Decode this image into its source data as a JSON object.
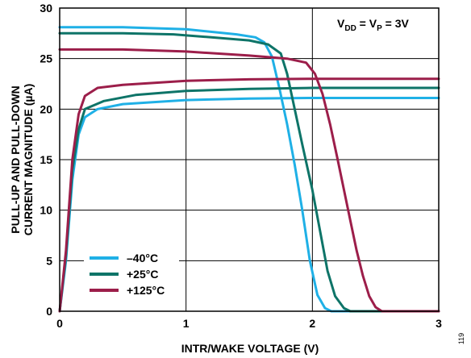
{
  "chart_data": {
    "type": "line",
    "title": "",
    "xlabel": "INTR/WAKE VOLTAGE (V)",
    "ylabel_lines": [
      "PULL-UP AND PULL-DOWN",
      "CURRENT MAGNITUDE (µA)"
    ],
    "xlim": [
      0,
      3
    ],
    "ylim": [
      0,
      30
    ],
    "xticks": [
      "0",
      "1",
      "2",
      "3"
    ],
    "yticks": [
      "0",
      "5",
      "10",
      "15",
      "20",
      "25",
      "30"
    ],
    "grid": true,
    "legend_position": "bottom-left",
    "annotation": {
      "v": "V",
      "dd": "DD",
      "eq1": " = V",
      "p": "P",
      "eq2": " = 3V"
    },
    "figure_id": "119",
    "series": [
      {
        "name": "–40°C",
        "color": "#1fb0e6",
        "pullup": [
          [
            0,
            28.1
          ],
          [
            0.5,
            28.1
          ],
          [
            1.0,
            27.9
          ],
          [
            1.4,
            27.4
          ],
          [
            1.55,
            27.1
          ],
          [
            1.62,
            26.6
          ],
          [
            1.68,
            25.2
          ],
          [
            1.74,
            22
          ],
          [
            1.8,
            18.5
          ],
          [
            1.86,
            14.5
          ],
          [
            1.92,
            10
          ],
          [
            1.98,
            5
          ],
          [
            2.04,
            1.6
          ],
          [
            2.1,
            0.3
          ],
          [
            2.15,
            0
          ],
          [
            3.0,
            0
          ]
        ],
        "pulldown": [
          [
            0,
            0
          ],
          [
            0.05,
            5
          ],
          [
            0.1,
            13
          ],
          [
            0.15,
            17.5
          ],
          [
            0.2,
            19.2
          ],
          [
            0.3,
            20
          ],
          [
            0.5,
            20.5
          ],
          [
            1.0,
            20.9
          ],
          [
            1.5,
            21.05
          ],
          [
            2.0,
            21.1
          ],
          [
            3.0,
            21.1
          ]
        ]
      },
      {
        "name": "+25°C",
        "color": "#0e7468",
        "pullup": [
          [
            0,
            27.5
          ],
          [
            0.5,
            27.5
          ],
          [
            0.9,
            27.4
          ],
          [
            1.2,
            27.1
          ],
          [
            1.5,
            26.8
          ],
          [
            1.65,
            26.4
          ],
          [
            1.75,
            25.5
          ],
          [
            1.8,
            23.5
          ],
          [
            1.86,
            20
          ],
          [
            1.92,
            16.5
          ],
          [
            2.0,
            12
          ],
          [
            2.06,
            8
          ],
          [
            2.12,
            4
          ],
          [
            2.18,
            1.5
          ],
          [
            2.25,
            0.3
          ],
          [
            2.3,
            0
          ],
          [
            3.0,
            0
          ]
        ],
        "pulldown": [
          [
            0,
            0
          ],
          [
            0.05,
            5.5
          ],
          [
            0.1,
            14
          ],
          [
            0.15,
            18
          ],
          [
            0.2,
            20
          ],
          [
            0.35,
            20.8
          ],
          [
            0.6,
            21.4
          ],
          [
            1.0,
            21.8
          ],
          [
            1.5,
            22.0
          ],
          [
            2.0,
            22.1
          ],
          [
            3.0,
            22.1
          ]
        ]
      },
      {
        "name": "+125°C",
        "color": "#9c1e4a",
        "pullup": [
          [
            0,
            25.9
          ],
          [
            0.5,
            25.9
          ],
          [
            1.0,
            25.7
          ],
          [
            1.5,
            25.3
          ],
          [
            1.8,
            25
          ],
          [
            1.95,
            24.6
          ],
          [
            2.02,
            23.5
          ],
          [
            2.08,
            21.5
          ],
          [
            2.14,
            18.5
          ],
          [
            2.2,
            15
          ],
          [
            2.25,
            12
          ],
          [
            2.3,
            9
          ],
          [
            2.35,
            6
          ],
          [
            2.4,
            3.5
          ],
          [
            2.45,
            1.5
          ],
          [
            2.5,
            0.4
          ],
          [
            2.55,
            0
          ],
          [
            3.0,
            0
          ]
        ],
        "pulldown": [
          [
            0,
            0
          ],
          [
            0.05,
            6
          ],
          [
            0.1,
            15
          ],
          [
            0.15,
            19.5
          ],
          [
            0.2,
            21.3
          ],
          [
            0.3,
            22.1
          ],
          [
            0.5,
            22.4
          ],
          [
            1.0,
            22.8
          ],
          [
            1.5,
            22.95
          ],
          [
            2.0,
            23.0
          ],
          [
            3.0,
            23.0
          ]
        ]
      }
    ]
  }
}
